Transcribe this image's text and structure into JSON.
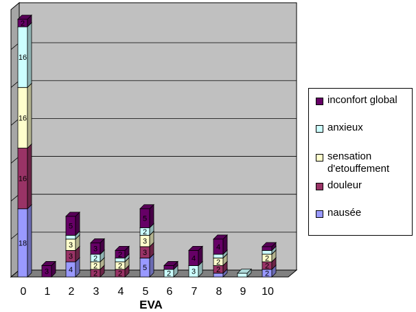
{
  "chart_data": {
    "type": "bar",
    "stacked": true,
    "three_d": true,
    "xlabel": "EVA",
    "categories": [
      "0",
      "1",
      "2",
      "3",
      "4",
      "5",
      "6",
      "7",
      "8",
      "9",
      "10"
    ],
    "series": [
      {
        "name": "nausée",
        "color": "#9999ff",
        "values": [
          18,
          0,
          4,
          0,
          0,
          5,
          0,
          0,
          1,
          0,
          2
        ]
      },
      {
        "name": "douleur",
        "color": "#993366",
        "values": [
          16,
          0,
          3,
          2,
          2,
          3,
          0,
          0,
          2,
          0,
          2
        ]
      },
      {
        "name": "sensation d'etouffement",
        "color": "#ffffcc",
        "values": [
          16,
          0,
          3,
          2,
          2,
          3,
          0,
          0,
          2,
          0,
          2
        ]
      },
      {
        "name": "anxieux",
        "color": "#ccffff",
        "values": [
          16,
          0,
          1,
          2,
          1,
          2,
          2,
          3,
          1,
          1,
          1
        ]
      },
      {
        "name": "inconfort global",
        "color": "#660066",
        "values": [
          2,
          3,
          5,
          3,
          2,
          5,
          1,
          4,
          4,
          0,
          1
        ]
      }
    ],
    "data_labels": [
      [
        18,
        null,
        4,
        null,
        null,
        5,
        null,
        null,
        null,
        null,
        2
      ],
      [
        16,
        null,
        3,
        2,
        2,
        3,
        null,
        null,
        2,
        null,
        2
      ],
      [
        16,
        null,
        3,
        2,
        2,
        3,
        null,
        null,
        2,
        null,
        2
      ],
      [
        16,
        null,
        null,
        2,
        null,
        2,
        2,
        3,
        null,
        null,
        null
      ],
      [
        2,
        3,
        5,
        3,
        2,
        5,
        null,
        4,
        4,
        null,
        null
      ]
    ],
    "y_tick_labels_shown": false,
    "grid": true,
    "legend_position": "right"
  },
  "legend": {
    "items": [
      {
        "label_lines": [
          "inconfort global"
        ],
        "color": "#660066"
      },
      {
        "label_lines": [
          "anxieux"
        ],
        "color": "#ccffff"
      },
      {
        "label_lines": [
          "sensation",
          "d'etouffement"
        ],
        "color": "#ffffcc"
      },
      {
        "label_lines": [
          "douleur"
        ],
        "color": "#993366"
      },
      {
        "label_lines": [
          "nausée"
        ],
        "color": "#9999ff"
      }
    ]
  }
}
